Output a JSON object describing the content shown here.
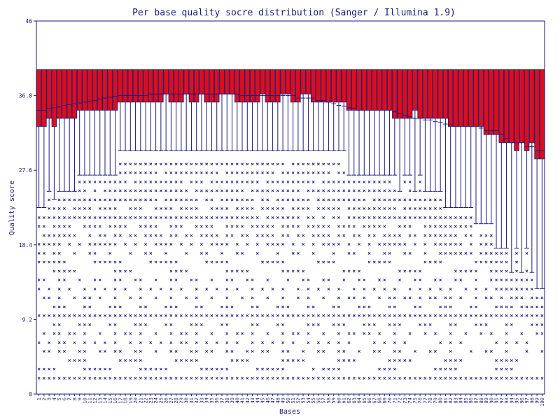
{
  "chart_data": {
    "type": "box",
    "title": "Per base quality socre distribution (Sanger / Illumina 1.9)",
    "xlabel": "Bases",
    "ylabel": "Quality score",
    "ylim": [
      0,
      46
    ],
    "yticks": [
      "0",
      "9.2",
      "18.4",
      "27.6",
      "36.8",
      "46"
    ],
    "categories": [
      "1",
      "2",
      "3",
      "4",
      "5",
      "6",
      "7",
      "8",
      "9",
      "10",
      "11",
      "12",
      "13",
      "14",
      "15",
      "16",
      "17",
      "18",
      "19",
      "20",
      "21",
      "22",
      "23",
      "24",
      "25",
      "26",
      "27",
      "28",
      "29",
      "30",
      "31",
      "32",
      "33",
      "34",
      "35",
      "36",
      "37",
      "38",
      "39",
      "40",
      "41",
      "42",
      "43",
      "44",
      "45",
      "46",
      "47",
      "48",
      "49",
      "50",
      "51",
      "52",
      "53",
      "54",
      "55",
      "56",
      "57",
      "58",
      "59",
      "60",
      "61",
      "62",
      "63",
      "64",
      "65",
      "66",
      "67",
      "68",
      "69",
      "70",
      "71",
      "72",
      "73",
      "74",
      "75",
      "76",
      "77",
      "78",
      "79",
      "80",
      "81",
      "82",
      "83",
      "84",
      "85",
      "86",
      "87",
      "88",
      "89",
      "90",
      "91",
      "92",
      "93",
      "94",
      "95",
      "96",
      "97",
      "98",
      "99",
      "100"
    ],
    "series": [
      {
        "q3": [
          40,
          40,
          40,
          40,
          40,
          40,
          40,
          40,
          40,
          40,
          40,
          40,
          40,
          40,
          40,
          40,
          40,
          40,
          40,
          40,
          40,
          40,
          40,
          40,
          40,
          40,
          40,
          40,
          40,
          40,
          40,
          40,
          40,
          40,
          40,
          40,
          40,
          40,
          40,
          40,
          40,
          40,
          40,
          40,
          40,
          40,
          40,
          40,
          40,
          40,
          40,
          40,
          40,
          40,
          40,
          40,
          40,
          40,
          40,
          40,
          40,
          40,
          40,
          40,
          40,
          40,
          40,
          40,
          40,
          40,
          40,
          40,
          40,
          40,
          40,
          40,
          40,
          40,
          40,
          40,
          40,
          40,
          40,
          40,
          40,
          40,
          40,
          40,
          40,
          40,
          40,
          40,
          40,
          40,
          40,
          40,
          40,
          40,
          40,
          40
        ],
        "q1": [
          33,
          33,
          34,
          33,
          34,
          34,
          34,
          34,
          35,
          35,
          35,
          35,
          35,
          35,
          35,
          35,
          36,
          36,
          36,
          36,
          36,
          36,
          36,
          36,
          36,
          37,
          36,
          36,
          36,
          37,
          36,
          36,
          37,
          36,
          36,
          36,
          37,
          37,
          37,
          36,
          36,
          36,
          36,
          36,
          37,
          36,
          36,
          36,
          37,
          37,
          36,
          36,
          37,
          37,
          36,
          36,
          36,
          36,
          36,
          36,
          36,
          35,
          35,
          35,
          35,
          35,
          35,
          35,
          35,
          35,
          34,
          34,
          34,
          34,
          35,
          34,
          34,
          34,
          34,
          34,
          34,
          33,
          33,
          33,
          33,
          33,
          33,
          33,
          32,
          32,
          32,
          31,
          31,
          31,
          30,
          31,
          30,
          31,
          29,
          29
        ],
        "median": [
          35,
          35,
          35.2,
          35.3,
          35.4,
          35.6,
          35.7,
          35.8,
          35.9,
          36,
          36.1,
          36.2,
          36.4,
          36.5,
          36.6,
          36.7,
          36.8,
          36.8,
          36.8,
          36.8,
          36.8,
          36.8,
          37,
          37,
          37,
          37,
          37,
          37,
          37,
          37,
          37,
          37,
          37,
          37,
          37,
          37,
          37,
          37,
          37,
          37,
          36.8,
          36.8,
          36.8,
          36.8,
          36.8,
          36.8,
          36.8,
          36.8,
          36.8,
          36.8,
          36.8,
          36.5,
          36.5,
          36.5,
          36.5,
          36.2,
          36.2,
          36,
          35.8,
          35.6,
          35.5,
          35.3,
          35.2,
          35,
          35,
          35,
          35,
          35,
          35,
          35,
          34.8,
          34.6,
          34.4,
          34.2,
          34,
          34,
          33.8,
          33.8,
          33.6,
          33.5,
          33.3,
          33.2,
          33,
          33,
          33,
          33,
          33,
          32.8,
          32.5,
          32.5,
          32.5,
          32,
          31.5,
          31,
          31,
          31,
          30.5,
          30.5,
          30,
          30
        ],
        "whisker_low": [
          23,
          23,
          25,
          24,
          25,
          25,
          25,
          25,
          27,
          27,
          27,
          27,
          27,
          27,
          27,
          27,
          30,
          30,
          30,
          30,
          30,
          30,
          30,
          30,
          30,
          30,
          30,
          30,
          30,
          30,
          30,
          30,
          30,
          30,
          30,
          30,
          30,
          30,
          30,
          30,
          30,
          30,
          30,
          30,
          30,
          30,
          30,
          30,
          30,
          30,
          30,
          30,
          30,
          30,
          30,
          30,
          30,
          30,
          30,
          30,
          30,
          27,
          27,
          27,
          27,
          27,
          27,
          27,
          27,
          27,
          27,
          25,
          27,
          27,
          25,
          27,
          25,
          25,
          25,
          25,
          23,
          23,
          23,
          23,
          23,
          23,
          21,
          21,
          21,
          21,
          18,
          18,
          18,
          15,
          18,
          15,
          18,
          15,
          13,
          13
        ]
      }
    ]
  }
}
